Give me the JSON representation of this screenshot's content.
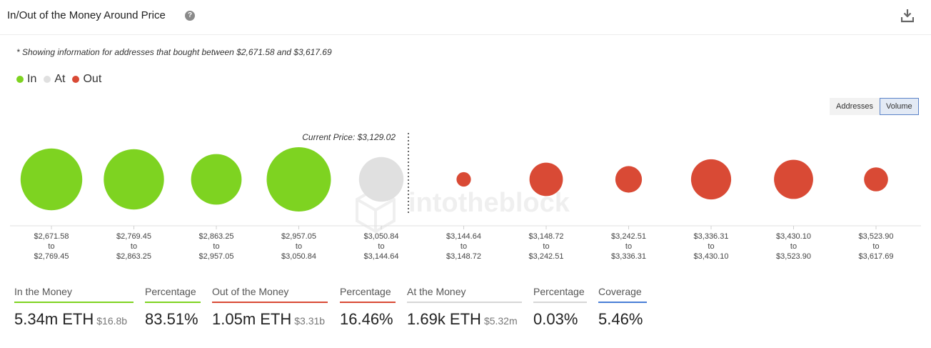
{
  "header": {
    "title": "In/Out of the Money Around Price",
    "help_icon": "?"
  },
  "note": "* Showing information for addresses that bought between $2,671.58 and $3,617.69",
  "legend": [
    {
      "label": "In",
      "color": "#7ed321"
    },
    {
      "label": "At",
      "color": "#e0e0e0"
    },
    {
      "label": "Out",
      "color": "#d94a35"
    }
  ],
  "toggle": {
    "addresses": "Addresses",
    "volume": "Volume",
    "selected": "Volume"
  },
  "watermark": "intotheblock",
  "chart_data": {
    "type": "bubble",
    "current_price_label": "Current Price: $3,129.02",
    "current_price_after_index": 4,
    "buckets": [
      {
        "from": "$2,671.58",
        "to": "$2,769.45",
        "status": "in",
        "relative_volume": 0.92
      },
      {
        "from": "$2,769.45",
        "to": "$2,863.25",
        "status": "in",
        "relative_volume": 0.88
      },
      {
        "from": "$2,863.25",
        "to": "$2,957.05",
        "status": "in",
        "relative_volume": 0.62
      },
      {
        "from": "$2,957.05",
        "to": "$3,050.84",
        "status": "in",
        "relative_volume": 1.0
      },
      {
        "from": "$3,050.84",
        "to": "$3,144.64",
        "status": "at",
        "relative_volume": 0.48
      },
      {
        "from": "$3,144.64",
        "to": "$3,148.72",
        "status": "out",
        "relative_volume": 0.05
      },
      {
        "from": "$3,148.72",
        "to": "$3,242.51",
        "status": "out",
        "relative_volume": 0.27
      },
      {
        "from": "$3,242.51",
        "to": "$3,336.31",
        "status": "out",
        "relative_volume": 0.17
      },
      {
        "from": "$3,336.31",
        "to": "$3,430.10",
        "status": "out",
        "relative_volume": 0.39
      },
      {
        "from": "$3,430.10",
        "to": "$3,523.90",
        "status": "out",
        "relative_volume": 0.37
      },
      {
        "from": "$3,523.90",
        "to": "$3,617.69",
        "status": "out",
        "relative_volume": 0.14
      }
    ],
    "to_word": "to"
  },
  "stats": [
    {
      "label": "In the Money",
      "value": "5.34m ETH",
      "sub": "$16.8b",
      "color": "#7ed321"
    },
    {
      "label": "Percentage",
      "value": "83.51%",
      "sub": "",
      "color": "#7ed321"
    },
    {
      "label": "Out of the Money",
      "value": "1.05m ETH",
      "sub": "$3.31b",
      "color": "#d94a35"
    },
    {
      "label": "Percentage",
      "value": "16.46%",
      "sub": "",
      "color": "#d94a35"
    },
    {
      "label": "At the Money",
      "value": "1.69k ETH",
      "sub": "$5.32m",
      "color": "#d6d6d6"
    },
    {
      "label": "Percentage",
      "value": "0.03%",
      "sub": "",
      "color": "#d6d6d6"
    },
    {
      "label": "Coverage",
      "value": "5.46%",
      "sub": "",
      "color": "#4a7fd6"
    }
  ],
  "colors": {
    "in": "#7ed321",
    "at": "#e0e0e0",
    "out": "#d94a35"
  }
}
